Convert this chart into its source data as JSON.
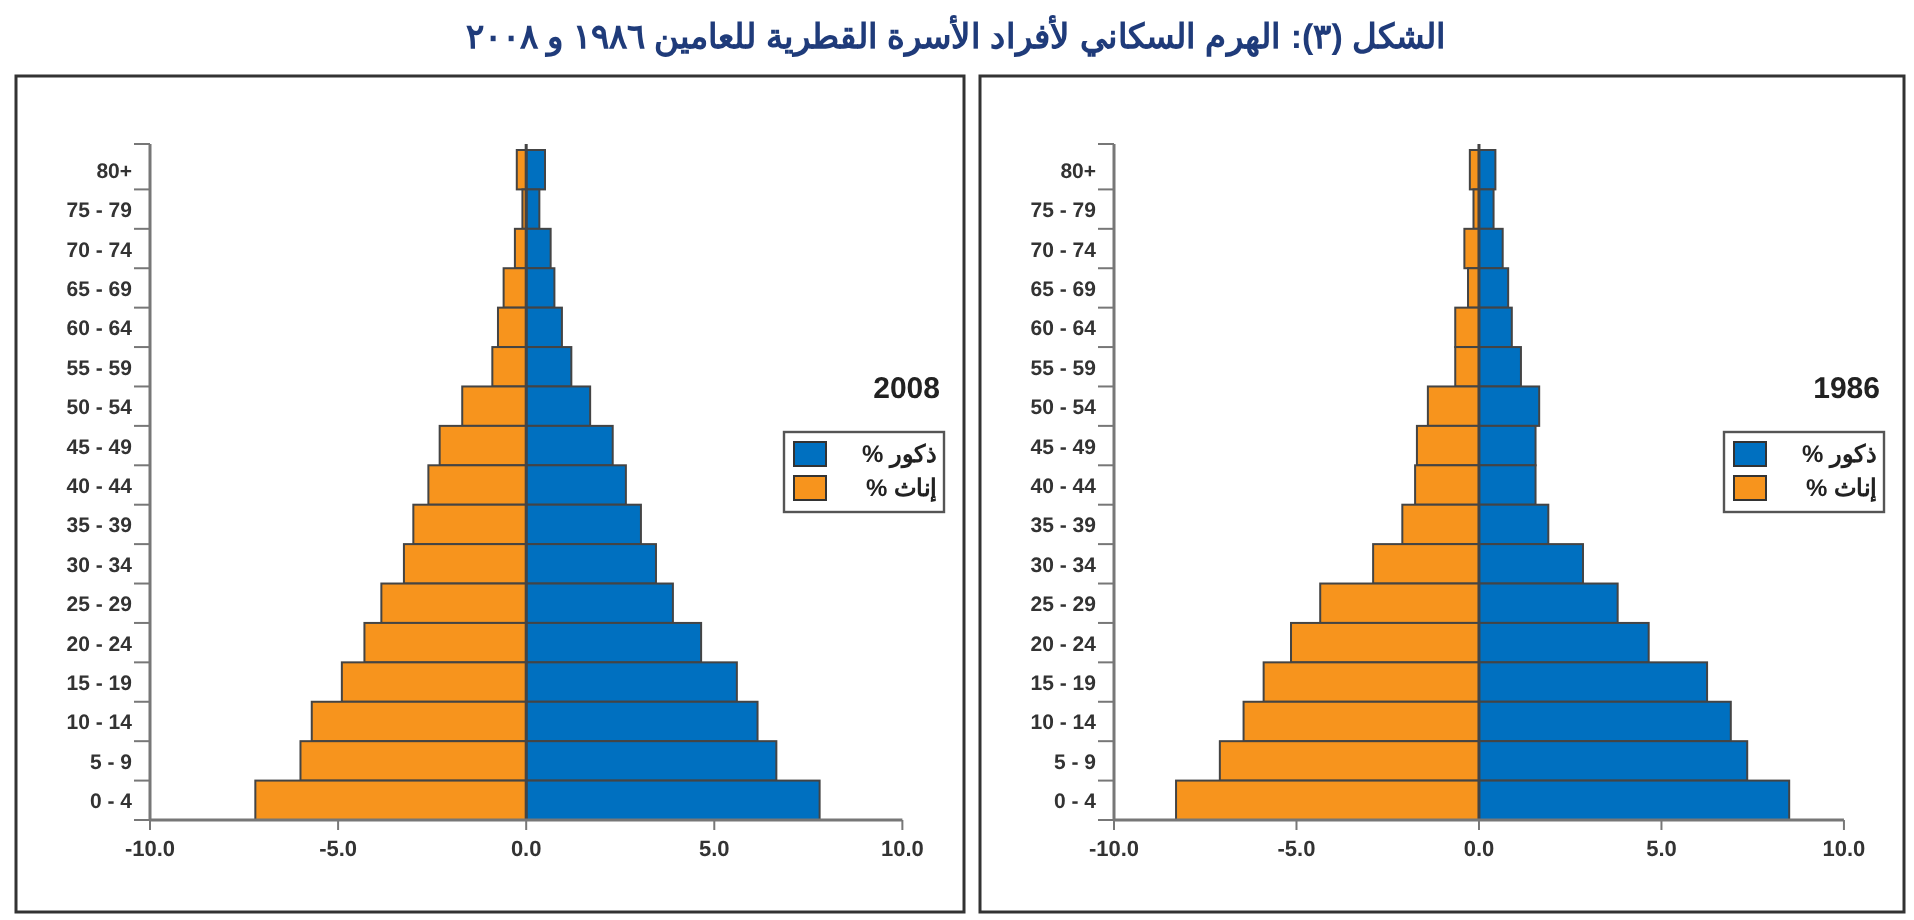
{
  "chart_data": [
    {
      "type": "bar",
      "orientation": "horizontal",
      "title": "2008",
      "annotations": [
        "الشكل (٣): الهرم السكاني لأفراد الأسرة القطرية للعامين ١٩٨٦ و ٢٠٠٨"
      ],
      "categories": [
        "80+",
        "75 - 79",
        "70 - 74",
        "65 - 69",
        "60 - 64",
        "55 - 59",
        "50 - 54",
        "45 - 49",
        "40 - 44",
        "35 - 39",
        "30 - 34",
        "25 - 29",
        "20 - 24",
        "15 - 19",
        "10 - 14",
        "5 - 9",
        "0 - 4"
      ],
      "series": [
        {
          "name": "ذكور %",
          "color": "#0070c0",
          "values": [
            0.5,
            0.35,
            0.65,
            0.75,
            0.95,
            1.2,
            1.7,
            2.3,
            2.65,
            3.05,
            3.45,
            3.9,
            4.65,
            5.6,
            6.15,
            6.65,
            7.8
          ]
        },
        {
          "name": "إناث %",
          "color": "#f7941d",
          "values": [
            -0.25,
            -0.1,
            -0.3,
            -0.6,
            -0.75,
            -0.9,
            -1.7,
            -2.3,
            -2.6,
            -3.0,
            -3.25,
            -3.85,
            -4.3,
            -4.9,
            -5.7,
            -6.0,
            -7.2
          ]
        }
      ],
      "xlim": [
        -10,
        10
      ],
      "xticks": [
        {
          "value": -10,
          "label": "-10.0"
        },
        {
          "value": -5,
          "label": "-5.0"
        },
        {
          "value": 0,
          "label": "0.0"
        },
        {
          "value": 5,
          "label": "5.0"
        },
        {
          "value": 10,
          "label": "10.0"
        }
      ],
      "legend": "right",
      "grid": false,
      "stacked": true,
      "ref_lines": [
        {
          "axis": "x",
          "value": 0,
          "color": "#444444"
        }
      ]
    },
    {
      "type": "bar",
      "orientation": "horizontal",
      "title": "1986",
      "categories": [
        "80+",
        "75 - 79",
        "70 - 74",
        "65 - 69",
        "60 - 64",
        "55 - 59",
        "50 - 54",
        "45 - 49",
        "40 - 44",
        "35 - 39",
        "30 - 34",
        "25 - 29",
        "20 - 24",
        "15 - 19",
        "10 - 14",
        "5 - 9",
        "0 - 4"
      ],
      "series": [
        {
          "name": "ذكور %",
          "color": "#0070c0",
          "values": [
            0.45,
            0.4,
            0.65,
            0.8,
            0.9,
            1.15,
            1.65,
            1.55,
            1.55,
            1.9,
            2.85,
            3.8,
            4.65,
            6.25,
            6.9,
            7.35,
            8.5
          ]
        },
        {
          "name": "إناث %",
          "color": "#f7941d",
          "values": [
            -0.25,
            -0.15,
            -0.4,
            -0.3,
            -0.65,
            -0.65,
            -1.4,
            -1.7,
            -1.75,
            -2.1,
            -2.9,
            -4.35,
            -5.15,
            -5.9,
            -6.45,
            -7.1,
            -8.3
          ]
        }
      ],
      "xlim": [
        -10,
        10
      ],
      "xticks": [
        {
          "value": -10,
          "label": "-10.0"
        },
        {
          "value": -5,
          "label": "-5.0"
        },
        {
          "value": 0,
          "label": "0.0"
        },
        {
          "value": 5,
          "label": "5.0"
        },
        {
          "value": 10,
          "label": "10.0"
        }
      ],
      "legend": "right",
      "grid": false,
      "stacked": true,
      "ref_lines": [
        {
          "axis": "x",
          "value": 0,
          "color": "#444444"
        }
      ]
    }
  ]
}
